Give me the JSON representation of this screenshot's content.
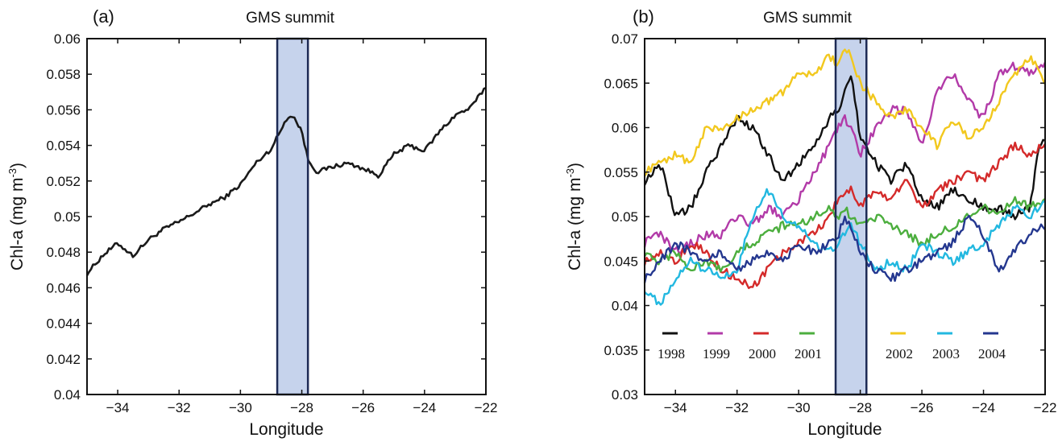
{
  "chart_data": [
    {
      "type": "line",
      "panel_label": "(a)",
      "title": "GMS summit",
      "xlabel": "Longitude",
      "ylabel": "Chl-a (mg m",
      "ylabel_sup": "-3",
      "ylabel_end": ")",
      "xlim": [
        -35,
        -22
      ],
      "ylim": [
        0.04,
        0.06
      ],
      "xticks": [
        -34,
        -32,
        -30,
        -28,
        -26,
        -24,
        -22
      ],
      "xtick_labels": [
        "−34",
        "−32",
        "−30",
        "−28",
        "−26",
        "−24",
        "−22"
      ],
      "yticks": [
        0.04,
        0.042,
        0.044,
        0.046,
        0.048,
        0.05,
        0.052,
        0.054,
        0.056,
        0.058,
        0.06
      ],
      "ytick_labels": [
        "0.04",
        "0.042",
        "0.044",
        "0.046",
        "0.048",
        "0.05",
        "0.052",
        "0.054",
        "0.056",
        "0.058",
        "0.06"
      ],
      "highlight_band": [
        -28.8,
        -27.8
      ],
      "grid": false,
      "series": [
        {
          "color": "#1a1a1a",
          "x": [
            -35,
            -34.5,
            -34,
            -33.5,
            -33,
            -32.5,
            -32,
            -31.5,
            -31,
            -30.5,
            -30,
            -29.5,
            -29,
            -28.7,
            -28.5,
            -28.3,
            -28,
            -27.8,
            -27.5,
            -27,
            -26.5,
            -26,
            -25.5,
            -25,
            -24.5,
            -24,
            -23.5,
            -23,
            -22.5,
            -22
          ],
          "y": [
            0.0468,
            0.0478,
            0.0485,
            0.0478,
            0.0487,
            0.0493,
            0.0497,
            0.0502,
            0.0507,
            0.0511,
            0.0518,
            0.053,
            0.0538,
            0.0548,
            0.0555,
            0.0557,
            0.0548,
            0.0532,
            0.0525,
            0.0528,
            0.053,
            0.0527,
            0.0523,
            0.0535,
            0.054,
            0.0537,
            0.0548,
            0.0557,
            0.0561,
            0.0573
          ]
        }
      ]
    },
    {
      "type": "line",
      "panel_label": "(b)",
      "title": "GMS summit",
      "xlabel": "Longitude",
      "ylabel": "Chl-a (mg m",
      "ylabel_sup": "-3",
      "ylabel_end": ")",
      "xlim": [
        -35,
        -22
      ],
      "ylim": [
        0.03,
        0.07
      ],
      "xticks": [
        -34,
        -32,
        -30,
        -28,
        -26,
        -24,
        -22
      ],
      "xtick_labels": [
        "−34",
        "−32",
        "−30",
        "−28",
        "−26",
        "−24",
        "−22"
      ],
      "yticks": [
        0.03,
        0.035,
        0.04,
        0.045,
        0.05,
        0.055,
        0.06,
        0.065,
        0.07
      ],
      "ytick_labels": [
        "0.03",
        "0.035",
        "0.04",
        "0.045",
        "0.05",
        "0.055",
        "0.06",
        "0.065",
        "0.07"
      ],
      "highlight_band": [
        -28.8,
        -27.8
      ],
      "grid": false,
      "legend_placement": "bottom",
      "series": [
        {
          "name": "1998",
          "color": "#111111",
          "x": [
            -35,
            -34.5,
            -34,
            -33.5,
            -33,
            -32.5,
            -32,
            -31.5,
            -31,
            -30.5,
            -30,
            -29.5,
            -29,
            -28.7,
            -28.5,
            -28.3,
            -28,
            -27.5,
            -27,
            -26.5,
            -26,
            -25.5,
            -25,
            -24.5,
            -24,
            -23.5,
            -23,
            -22.5,
            -22.2,
            -22
          ],
          "y": [
            0.054,
            0.056,
            0.05,
            0.051,
            0.055,
            0.058,
            0.061,
            0.06,
            0.057,
            0.054,
            0.056,
            0.058,
            0.061,
            0.062,
            0.064,
            0.066,
            0.059,
            0.056,
            0.054,
            0.056,
            0.052,
            0.051,
            0.053,
            0.052,
            0.051,
            0.051,
            0.05,
            0.051,
            0.058,
            0.059
          ]
        },
        {
          "name": "1999",
          "color": "#b23aa8",
          "x": [
            -35,
            -34.5,
            -34,
            -33.5,
            -33,
            -32.5,
            -32,
            -31.5,
            -31,
            -30.5,
            -30,
            -29.5,
            -29,
            -28.7,
            -28.5,
            -28.3,
            -28,
            -27.5,
            -27,
            -26.5,
            -26,
            -25.5,
            -25,
            -24.5,
            -24,
            -23.5,
            -23,
            -22.5,
            -22
          ],
          "y": [
            0.047,
            0.048,
            0.046,
            0.047,
            0.048,
            0.048,
            0.05,
            0.049,
            0.051,
            0.05,
            0.052,
            0.055,
            0.058,
            0.06,
            0.061,
            0.06,
            0.057,
            0.06,
            0.062,
            0.062,
            0.058,
            0.064,
            0.066,
            0.063,
            0.061,
            0.066,
            0.067,
            0.066,
            0.067
          ]
        },
        {
          "name": "2000",
          "color": "#d42a2a",
          "x": [
            -35,
            -34.5,
            -34,
            -33.5,
            -33,
            -32.5,
            -32,
            -31.5,
            -31,
            -30.5,
            -30,
            -29.5,
            -29,
            -28.7,
            -28.5,
            -28.3,
            -28,
            -27.5,
            -27,
            -26.5,
            -26,
            -25.5,
            -25,
            -24.5,
            -24,
            -23.5,
            -23,
            -22.5,
            -22
          ],
          "y": [
            0.045,
            0.046,
            0.045,
            0.047,
            0.046,
            0.044,
            0.043,
            0.042,
            0.044,
            0.046,
            0.047,
            0.048,
            0.05,
            0.052,
            0.053,
            0.053,
            0.051,
            0.053,
            0.052,
            0.054,
            0.051,
            0.053,
            0.054,
            0.055,
            0.054,
            0.056,
            0.058,
            0.057,
            0.058
          ]
        },
        {
          "name": "2001",
          "color": "#4cae3e",
          "x": [
            -35,
            -34.5,
            -34,
            -33.5,
            -33,
            -32.5,
            -32,
            -31.5,
            -31,
            -30.5,
            -30,
            -29.5,
            -29,
            -28.7,
            -28.5,
            -28.3,
            -28,
            -27.5,
            -27,
            -26.5,
            -26,
            -25.5,
            -25,
            -24.5,
            -24,
            -23.5,
            -23,
            -22.5,
            -22
          ],
          "y": [
            0.046,
            0.045,
            0.046,
            0.044,
            0.045,
            0.044,
            0.046,
            0.047,
            0.048,
            0.049,
            0.049,
            0.05,
            0.051,
            0.05,
            0.051,
            0.05,
            0.049,
            0.05,
            0.049,
            0.048,
            0.047,
            0.048,
            0.049,
            0.05,
            0.051,
            0.05,
            0.052,
            0.051,
            0.052
          ]
        },
        {
          "name": "2002",
          "color": "#f2c81e",
          "x": [
            -35,
            -34.5,
            -34,
            -33.5,
            -33,
            -32.5,
            -32,
            -31.5,
            -31,
            -30.5,
            -30,
            -29.5,
            -29,
            -28.7,
            -28.5,
            -28.3,
            -28,
            -27.5,
            -27,
            -26.5,
            -26,
            -25.5,
            -25,
            -24.5,
            -24,
            -23.5,
            -23,
            -22.5,
            -22
          ],
          "y": [
            0.055,
            0.056,
            0.057,
            0.056,
            0.06,
            0.06,
            0.061,
            0.062,
            0.063,
            0.064,
            0.066,
            0.066,
            0.068,
            0.067,
            0.069,
            0.068,
            0.065,
            0.063,
            0.061,
            0.062,
            0.06,
            0.058,
            0.061,
            0.059,
            0.06,
            0.063,
            0.066,
            0.068,
            0.065
          ]
        },
        {
          "name": "2003",
          "color": "#22b8e0",
          "x": [
            -35,
            -34.5,
            -34,
            -33.5,
            -33,
            -32.5,
            -32,
            -31.5,
            -31,
            -30.5,
            -30,
            -29.5,
            -29,
            -28.7,
            -28.5,
            -28.3,
            -28,
            -27.5,
            -27,
            -26.5,
            -26,
            -25.5,
            -25,
            -24.5,
            -24,
            -23.5,
            -23,
            -22.5,
            -22
          ],
          "y": [
            0.042,
            0.04,
            0.043,
            0.045,
            0.044,
            0.043,
            0.044,
            0.05,
            0.053,
            0.05,
            0.049,
            0.047,
            0.046,
            0.047,
            0.048,
            0.049,
            0.047,
            0.044,
            0.045,
            0.044,
            0.047,
            0.046,
            0.045,
            0.046,
            0.047,
            0.049,
            0.051,
            0.05,
            0.052
          ]
        },
        {
          "name": "2004",
          "color": "#24378f",
          "x": [
            -35,
            -34.5,
            -34,
            -33.5,
            -33,
            -32.5,
            -32,
            -31.5,
            -31,
            -30.5,
            -30,
            -29.5,
            -29,
            -28.7,
            -28.5,
            -28.3,
            -28,
            -27.5,
            -27,
            -26.5,
            -26,
            -25.5,
            -25,
            -24.5,
            -24,
            -23.5,
            -23,
            -22.5,
            -22
          ],
          "y": [
            0.043,
            0.045,
            0.047,
            0.046,
            0.045,
            0.046,
            0.044,
            0.045,
            0.046,
            0.045,
            0.047,
            0.046,
            0.047,
            0.048,
            0.05,
            0.049,
            0.046,
            0.044,
            0.043,
            0.044,
            0.045,
            0.046,
            0.047,
            0.05,
            0.048,
            0.044,
            0.046,
            0.048,
            0.049
          ]
        }
      ]
    }
  ]
}
